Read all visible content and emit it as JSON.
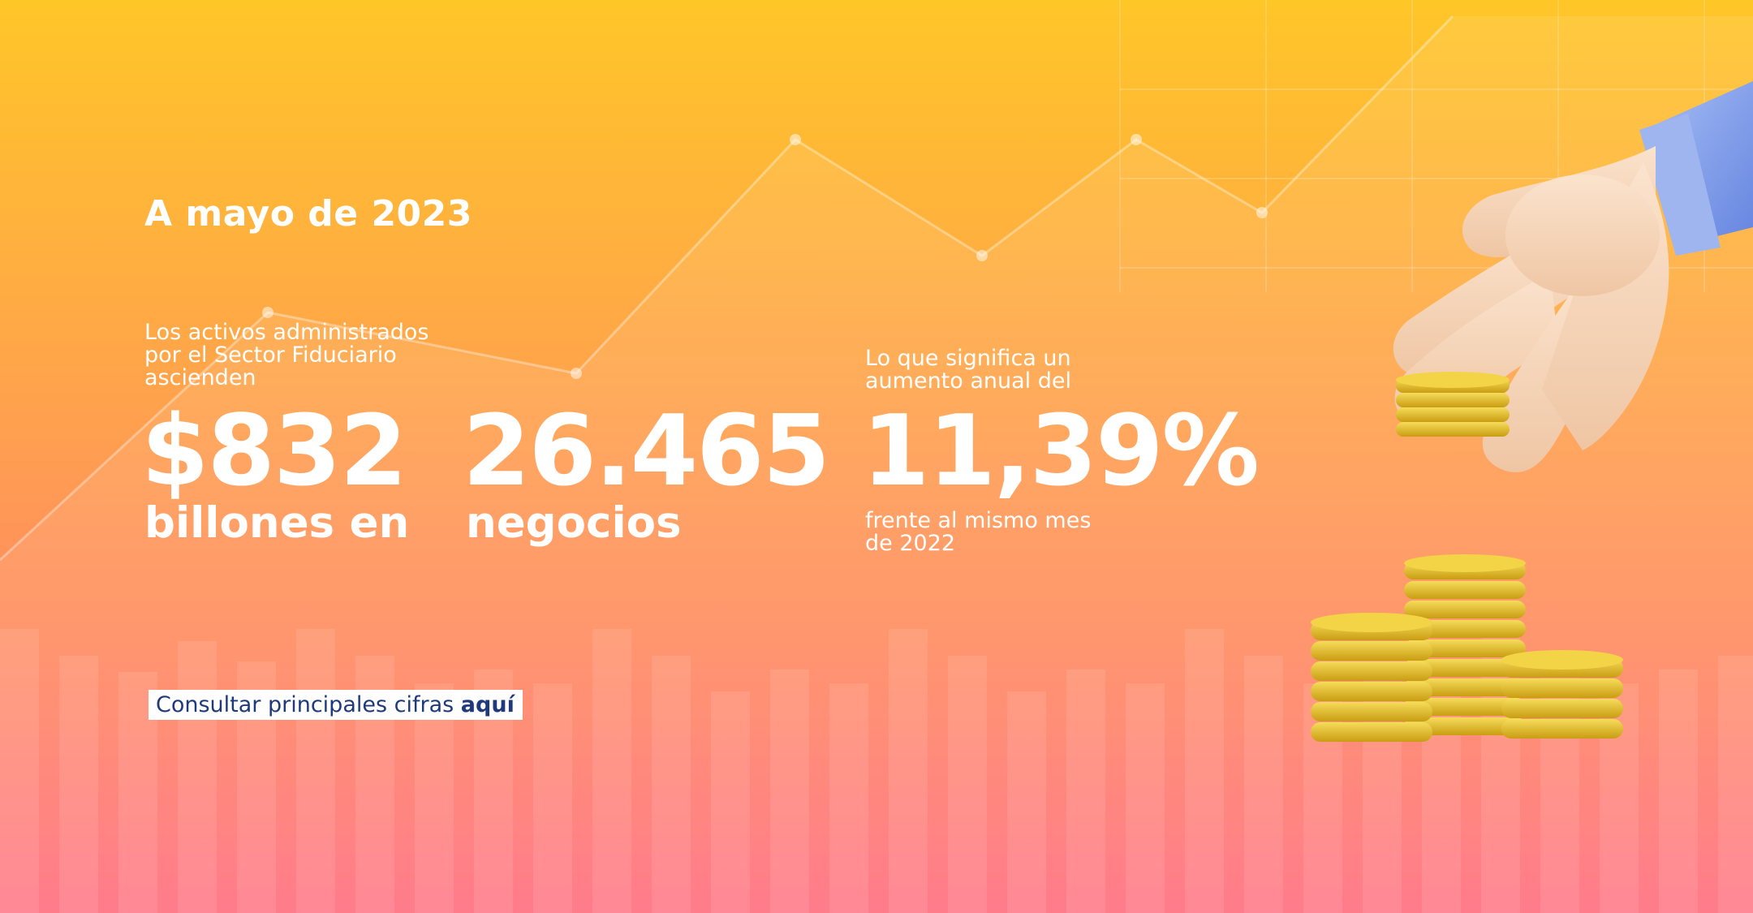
{
  "banner": {
    "date_title": "A mayo de 2023",
    "intro_text": "Los activos administrados por el Sector Fiduciario ascienden",
    "amount_value": "$832",
    "amount_caption": "billones en",
    "count_value": "26.465",
    "count_caption": "negocios",
    "increase_intro": "Lo que significa un aumento anual del",
    "increase_value": "11,39%",
    "increase_caption": "frente al mismo mes de 2022",
    "cta": {
      "label": "Consultar principales cifras",
      "emphasis": "aquí"
    }
  },
  "colors": {
    "gradient_top": "#ffc628",
    "gradient_bottom": "#ff6f80",
    "text": "#ffffff",
    "cta_text": "#1f3a7a",
    "cta_background": "#ffffff",
    "coin_gold": "#e8c32e",
    "skin": "#f6d6bb",
    "sleeve": "#7d9bea"
  },
  "icons": {
    "hand": "hand-holding-coins-illustration",
    "coins": "gold-coin-stacks-illustration"
  }
}
